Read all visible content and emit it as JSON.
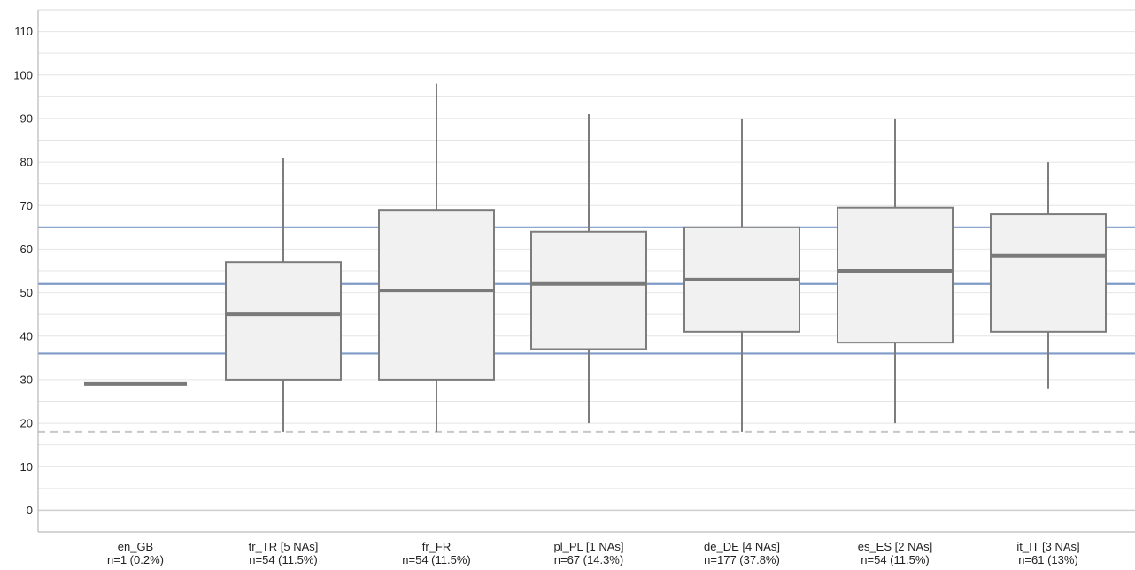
{
  "chart_data": {
    "type": "boxplot",
    "title": "",
    "xlabel": "",
    "ylabel": "",
    "ylim": [
      -5,
      115
    ],
    "y_ticks": [
      0,
      10,
      20,
      30,
      40,
      50,
      60,
      70,
      80,
      90,
      100,
      110
    ],
    "grid": true,
    "reference_lines": [
      {
        "value": 65,
        "style": "solid",
        "color": "#7f9cc8"
      },
      {
        "value": 52,
        "style": "solid",
        "color": "#7f9cc8"
      },
      {
        "value": 36,
        "style": "solid",
        "color": "#7f9cc8"
      },
      {
        "value": 18,
        "style": "dashed",
        "color": "#c8c8c8"
      }
    ],
    "boxes": [
      {
        "category": "en_GB",
        "sublabel": "n=1 (0.2%)",
        "median": 29
      },
      {
        "category": "tr_TR [5 NAs]",
        "sublabel": "n=54 (11.5%)",
        "whisker_low": 18,
        "q1": 30,
        "median": 45,
        "q3": 57,
        "whisker_high": 81
      },
      {
        "category": "fr_FR",
        "sublabel": "n=54 (11.5%)",
        "whisker_low": 18,
        "q1": 30,
        "median": 50.5,
        "q3": 69,
        "whisker_high": 98
      },
      {
        "category": "pl_PL [1 NAs]",
        "sublabel": "n=67 (14.3%)",
        "whisker_low": 20,
        "q1": 37,
        "median": 52,
        "q3": 64,
        "whisker_high": 91
      },
      {
        "category": "de_DE [4 NAs]",
        "sublabel": "n=177 (37.8%)",
        "whisker_low": 18,
        "q1": 41,
        "median": 53,
        "q3": 65,
        "whisker_high": 90
      },
      {
        "category": "es_ES [2 NAs]",
        "sublabel": "n=54 (11.5%)",
        "whisker_low": 20,
        "q1": 38.5,
        "median": 55,
        "q3": 69.5,
        "whisker_high": 90
      },
      {
        "category": "it_IT [3 NAs]",
        "sublabel": "n=61 (13%)",
        "whisker_low": 28,
        "q1": 41,
        "median": 58.5,
        "q3": 68,
        "whisker_high": 80
      }
    ],
    "colors": {
      "box_fill": "#f1f1f1",
      "box_stroke": "#7d7d7d",
      "median": "#7a7a7a",
      "grid": "#e4e4e4",
      "axis": "#aaaaaa",
      "zero_line": "#cfcfcf"
    }
  }
}
